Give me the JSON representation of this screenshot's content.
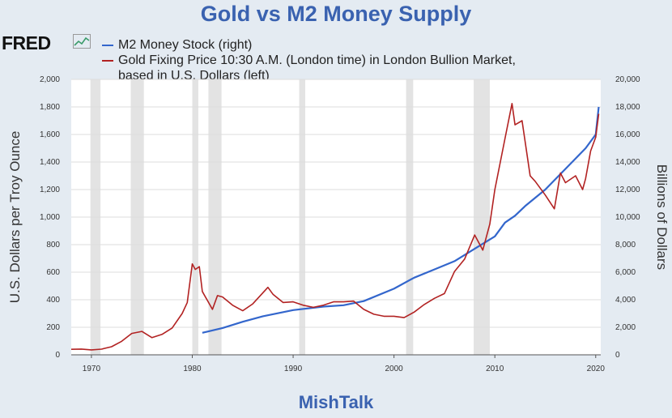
{
  "title": "Gold vs M2 Money Supply",
  "footer": "MishTalk",
  "logo": "FRED",
  "legend": [
    {
      "label": "M2 Money Stock (right)",
      "color": "#3366cc"
    },
    {
      "label": "Gold Fixing Price 10:30 A.M. (London time) in London Bullion Market,",
      "label2": "based in U.S. Dollars (left)",
      "color": "#b22222"
    }
  ],
  "chart_data": {
    "type": "line",
    "title": "Gold vs M2 Money Supply",
    "x_ticks": [
      "1970",
      "1980",
      "1990",
      "2000",
      "2010",
      "2020"
    ],
    "xlim": [
      1968,
      2020.5
    ],
    "y_left": {
      "label": "U.S. Dollars per Troy Ounce",
      "lim": [
        0,
        2000
      ],
      "ticks": [
        "0",
        "200",
        "400",
        "600",
        "800",
        "1,000",
        "1,200",
        "1,400",
        "1,600",
        "1,800",
        "2,000"
      ]
    },
    "y_right": {
      "label": "Billions of Dollars",
      "lim": [
        0,
        20000
      ],
      "ticks": [
        "0",
        "2,000",
        "4,000",
        "6,000",
        "8,000",
        "10,000",
        "12,000",
        "14,000",
        "16,000",
        "18,000",
        "20,000"
      ]
    },
    "recessions": [
      [
        1969.9,
        1970.9
      ],
      [
        1973.9,
        1975.2
      ],
      [
        1980.0,
        1980.6
      ],
      [
        1981.6,
        1982.9
      ],
      [
        1990.6,
        1991.2
      ],
      [
        2001.2,
        2001.9
      ],
      [
        2007.9,
        2009.5
      ]
    ],
    "series": [
      {
        "name": "M2 Money Stock (right)",
        "axis": "right",
        "color": "#3366cc",
        "x": [
          1981,
          1983,
          1985,
          1987,
          1990,
          1993,
          1995,
          1997,
          2000,
          2002,
          2004,
          2006,
          2008,
          2010,
          2011,
          2012,
          2013,
          2015,
          2017,
          2019,
          2020.0,
          2020.3
        ],
        "y": [
          1600,
          1950,
          2400,
          2800,
          3250,
          3500,
          3600,
          3900,
          4800,
          5600,
          6200,
          6800,
          7700,
          8600,
          9600,
          10100,
          10800,
          12000,
          13500,
          15000,
          16000,
          18000
        ]
      },
      {
        "name": "Gold Fixing Price 10:30 A.M. (London time) in London Bullion Market, based in U.S. Dollars (left)",
        "axis": "left",
        "color": "#b22222",
        "x": [
          1968,
          1969,
          1970,
          1971,
          1972,
          1973,
          1974,
          1975,
          1976,
          1977,
          1978,
          1979,
          1979.5,
          1980.0,
          1980.3,
          1980.7,
          1981,
          1982,
          1982.5,
          1983,
          1984,
          1985,
          1986,
          1987.5,
          1988,
          1989,
          1990,
          1991,
          1992,
          1993,
          1994,
          1995,
          1996,
          1997,
          1998,
          1999,
          2000,
          2001,
          2002,
          2003,
          2004,
          2005,
          2006,
          2007,
          2008,
          2008.8,
          2009.5,
          2010,
          2011,
          2011.7,
          2012,
          2012.7,
          2013.5,
          2014,
          2015,
          2015.9,
          2016.5,
          2017,
          2018,
          2018.7,
          2019,
          2019.5,
          2020.0,
          2020.3
        ],
        "y": [
          40,
          42,
          36,
          41,
          59,
          98,
          155,
          170,
          125,
          148,
          195,
          300,
          380,
          660,
          620,
          640,
          460,
          330,
          430,
          420,
          360,
          320,
          370,
          490,
          440,
          380,
          385,
          360,
          345,
          360,
          385,
          385,
          390,
          330,
          295,
          280,
          280,
          270,
          310,
          365,
          410,
          445,
          605,
          695,
          870,
          760,
          950,
          1200,
          1570,
          1825,
          1670,
          1700,
          1300,
          1260,
          1160,
          1060,
          1320,
          1250,
          1300,
          1200,
          1280,
          1480,
          1580,
          1750
        ]
      }
    ]
  }
}
